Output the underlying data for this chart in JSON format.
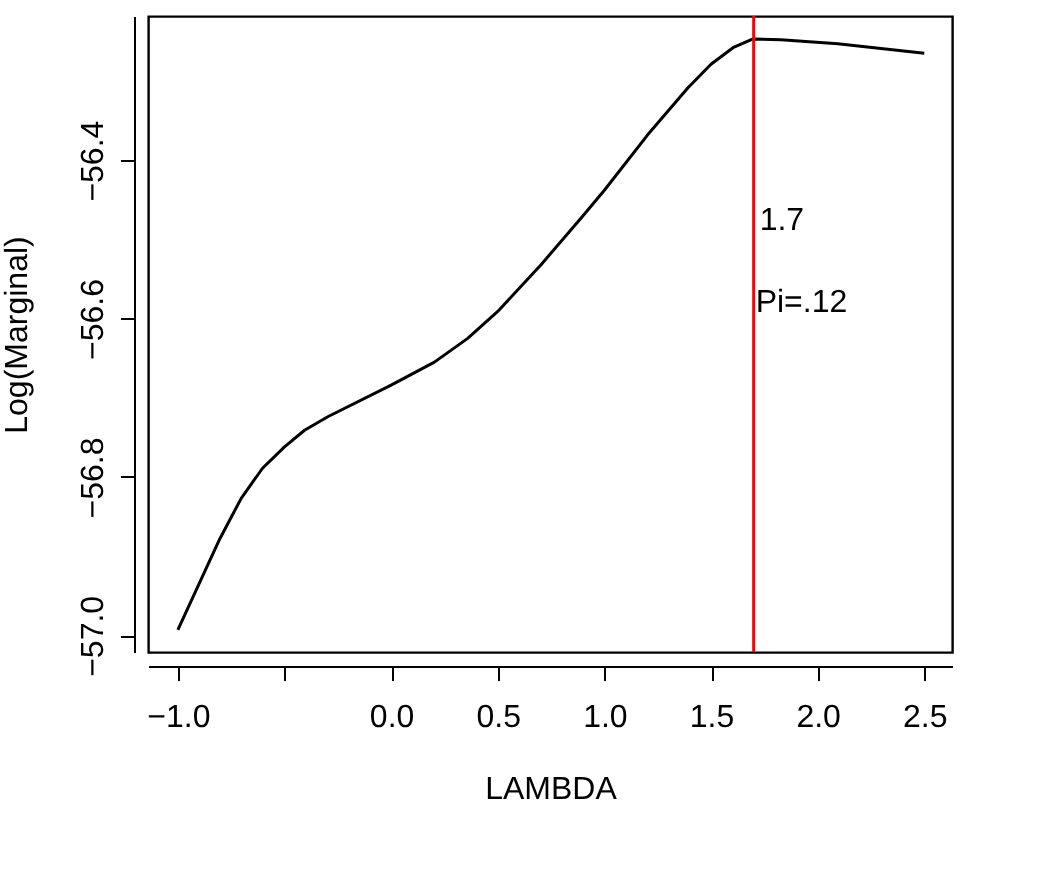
{
  "chart_data": {
    "type": "line",
    "xlabel": "LAMBDA",
    "ylabel": "Log(Marginal)",
    "xlim": [
      -1.14,
      2.63
    ],
    "ylim": [
      -57.021,
      -56.218
    ],
    "xticks": [
      {
        "value": -1.0,
        "label": "−1.0"
      },
      {
        "value": -0.5,
        "label": null
      },
      {
        "value": 0,
        "label": "0.0"
      },
      0.5,
      {
        "value": 1,
        "label": "1.0"
      },
      1.5,
      {
        "value": 2,
        "label": "2.0"
      },
      2.5
    ],
    "yticks": [
      {
        "value": -57.0,
        "label": "−57.0"
      },
      {
        "value": -56.8,
        "label": "−56.8"
      },
      {
        "value": -56.6,
        "label": "−56.6"
      },
      {
        "value": -56.4,
        "label": "−56.4"
      }
    ],
    "grid": false,
    "marker": "none",
    "line_style": "solid",
    "series": [
      {
        "color": "#000000",
        "x": [
          -1.0,
          -0.803,
          -0.703,
          -0.603,
          -0.5,
          -0.406,
          -0.297,
          0.0,
          0.203,
          0.359,
          0.5,
          0.703,
          0.891,
          1.0,
          1.203,
          1.391,
          1.5,
          1.603,
          1.697,
          1.828,
          2.094,
          2.5
        ],
        "values": [
          -56.993,
          -56.878,
          -56.827,
          -56.789,
          -56.762,
          -56.741,
          -56.724,
          -56.684,
          -56.655,
          -56.625,
          -56.591,
          -56.532,
          -56.473,
          -56.438,
          -56.368,
          -56.309,
          -56.279,
          -56.258,
          -56.247,
          -56.248,
          -56.253,
          -56.265
        ]
      }
    ],
    "ref_lines": [
      {
        "axis": "x",
        "value": 1.7,
        "label": "1.7",
        "color": "#ff0000",
        "line_style": "solid"
      }
    ],
    "annotations": [
      "Pi=.12"
    ]
  }
}
